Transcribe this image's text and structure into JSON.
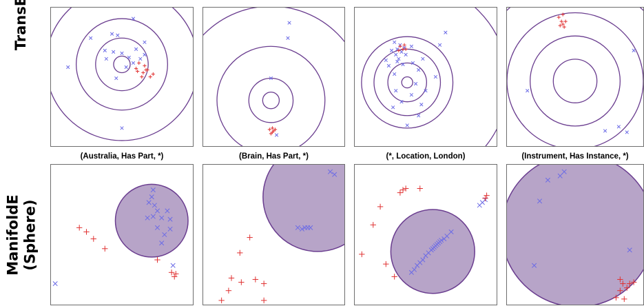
{
  "row_labels": {
    "transe": "TransE",
    "manifolde_line1": "ManifoldE",
    "manifolde_line2": "(Sphere)"
  },
  "captions": [
    "(Australia, Has Part, *)",
    "(Brain, Has Part, *)",
    "(*, Location, London)",
    "(Instrument, Has Instance, *)"
  ],
  "colors": {
    "manifold": "#6a3d8f",
    "fill": "#b7a4c8",
    "neg": "#6b6be6",
    "pos": "#e03030",
    "pos_dark": "#d01818"
  },
  "chart_data": [
    {
      "type": "scatter",
      "model": "TransE",
      "relation": "(Australia, Has Part, *)",
      "xlim": [
        0,
        1
      ],
      "ylim": [
        0,
        1
      ],
      "center": [
        0.5,
        0.59
      ],
      "radii": [
        0.06,
        0.19,
        0.33,
        0.55
      ],
      "series": [
        {
          "name": "",
          "marker": "x",
          "color": "neg",
          "points": [
            [
              0.43,
              0.81
            ],
            [
              0.28,
              0.78
            ],
            [
              0.12,
              0.57
            ],
            [
              0.38,
              0.69
            ],
            [
              0.5,
              0.67
            ],
            [
              0.55,
              0.64
            ],
            [
              0.58,
              0.6
            ],
            [
              0.6,
              0.7
            ],
            [
              0.63,
              0.63
            ],
            [
              0.53,
              0.57
            ],
            [
              0.39,
              0.63
            ],
            [
              0.44,
              0.68
            ],
            [
              0.66,
              0.66
            ],
            [
              0.5,
              0.13
            ],
            [
              0.46,
              0.49
            ],
            [
              0.47,
              0.8
            ],
            [
              0.66,
              0.75
            ],
            [
              0.58,
              0.92
            ]
          ]
        },
        {
          "name": "",
          "marker": "+",
          "color": "pos",
          "points": [
            [
              0.6,
              0.56
            ],
            [
              0.65,
              0.53
            ],
            [
              0.68,
              0.55
            ],
            [
              0.62,
              0.6
            ],
            [
              0.66,
              0.58
            ],
            [
              0.72,
              0.52
            ],
            [
              0.7,
              0.5
            ],
            [
              0.64,
              0.5
            ],
            [
              0.61,
              0.54
            ],
            [
              0.67,
              0.55
            ]
          ]
        }
      ]
    },
    {
      "type": "scatter",
      "model": "TransE",
      "relation": "(Brain, Has Part, *)",
      "xlim": [
        0,
        1
      ],
      "ylim": [
        0,
        1
      ],
      "center": [
        0.48,
        0.33
      ],
      "radii": [
        0.06,
        0.16,
        0.39,
        0.68
      ],
      "series": [
        {
          "name": "",
          "marker": "x",
          "color": "neg",
          "points": [
            [
              0.48,
              0.49
            ],
            [
              0.6,
              0.78
            ],
            [
              0.61,
              0.89
            ],
            [
              0.52,
              0.08
            ]
          ]
        },
        {
          "name": "",
          "marker": "+",
          "color": "pos",
          "points": [
            [
              0.49,
              0.13
            ],
            [
              0.5,
              0.11
            ],
            [
              0.47,
              0.12
            ],
            [
              0.49,
              0.1
            ],
            [
              0.51,
              0.12
            ],
            [
              0.48,
              0.09
            ]
          ]
        }
      ]
    },
    {
      "type": "scatter",
      "model": "TransE",
      "relation": "(*, Location, London)",
      "xlim": [
        0,
        1
      ],
      "ylim": [
        0,
        1
      ],
      "center": [
        0.37,
        0.46
      ],
      "radii": [
        0.04,
        0.14,
        0.24,
        0.33,
        0.73
      ],
      "series": [
        {
          "name": "",
          "marker": "x",
          "color": "neg",
          "points": [
            [
              0.3,
              0.7
            ],
            [
              0.28,
              0.75
            ],
            [
              0.32,
              0.73
            ],
            [
              0.33,
              0.68
            ],
            [
              0.35,
              0.71
            ],
            [
              0.29,
              0.66
            ],
            [
              0.36,
              0.66
            ],
            [
              0.31,
              0.63
            ],
            [
              0.26,
              0.69
            ],
            [
              0.3,
              0.61
            ],
            [
              0.34,
              0.59
            ],
            [
              0.4,
              0.72
            ],
            [
              0.28,
              0.52
            ],
            [
              0.24,
              0.58
            ],
            [
              0.41,
              0.6
            ],
            [
              0.45,
              0.55
            ],
            [
              0.43,
              0.45
            ],
            [
              0.47,
              0.3
            ],
            [
              0.45,
              0.22
            ],
            [
              0.33,
              0.32
            ],
            [
              0.29,
              0.4
            ],
            [
              0.4,
              0.37
            ],
            [
              0.27,
              0.28
            ],
            [
              0.37,
              0.15
            ],
            [
              0.57,
              0.5
            ],
            [
              0.48,
              0.63
            ],
            [
              0.6,
              0.73
            ],
            [
              0.64,
              0.82
            ],
            [
              0.22,
              0.62
            ],
            [
              0.5,
              0.4
            ]
          ]
        },
        {
          "name": "",
          "marker": "+",
          "color": "pos",
          "points": [
            [
              0.32,
              0.72
            ],
            [
              0.34,
              0.7
            ],
            [
              0.36,
              0.7
            ],
            [
              0.31,
              0.69
            ],
            [
              0.35,
              0.73
            ]
          ]
        }
      ]
    },
    {
      "type": "scatter",
      "model": "TransE",
      "relation": "(Instrument, Has Instance, *)",
      "xlim": [
        0,
        1
      ],
      "ylim": [
        0,
        1
      ],
      "center": [
        0.5,
        0.47
      ],
      "radii": [
        0.16,
        0.33,
        0.5,
        0.72
      ],
      "series": [
        {
          "name": "",
          "marker": "x",
          "color": "neg",
          "points": [
            [
              0.15,
              0.4
            ],
            [
              0.72,
              0.11
            ],
            [
              0.82,
              0.14
            ],
            [
              0.88,
              0.1
            ],
            [
              0.93,
              0.69
            ]
          ]
        },
        {
          "name": "",
          "marker": "+",
          "color": "pos",
          "points": [
            [
              0.38,
              0.93
            ],
            [
              0.4,
              0.9
            ],
            [
              0.41,
              0.88
            ],
            [
              0.39,
              0.87
            ],
            [
              0.43,
              0.9
            ],
            [
              0.41,
              0.95
            ],
            [
              0.42,
              0.86
            ]
          ]
        }
      ]
    },
    {
      "type": "scatter",
      "model": "ManifoldE (Sphere)",
      "relation": "(Australia, Has Part, *)",
      "xlim": [
        0,
        1
      ],
      "ylim": [
        0,
        1
      ],
      "sphere_center": [
        0.71,
        0.6
      ],
      "sphere_radius": 0.26,
      "series": [
        {
          "name": "",
          "marker": "x",
          "color": "neg",
          "points": [
            [
              0.71,
              0.77
            ],
            [
              0.69,
              0.73
            ],
            [
              0.73,
              0.71
            ],
            [
              0.75,
              0.67
            ],
            [
              0.82,
              0.67
            ],
            [
              0.68,
              0.62
            ],
            [
              0.72,
              0.63
            ],
            [
              0.78,
              0.62
            ],
            [
              0.84,
              0.61
            ],
            [
              0.75,
              0.55
            ],
            [
              0.8,
              0.5
            ],
            [
              0.84,
              0.54
            ],
            [
              0.78,
              0.44
            ],
            [
              0.86,
              0.28
            ],
            [
              0.03,
              0.15
            ],
            [
              0.72,
              0.82
            ]
          ]
        },
        {
          "name": "",
          "marker": "+",
          "color": "pos",
          "points": [
            [
              0.2,
              0.55
            ],
            [
              0.25,
              0.52
            ],
            [
              0.3,
              0.47
            ],
            [
              0.38,
              0.4
            ],
            [
              0.75,
              0.32
            ],
            [
              0.85,
              0.23
            ],
            [
              0.87,
              0.2
            ],
            [
              0.88,
              0.22
            ]
          ]
        }
      ]
    },
    {
      "type": "scatter",
      "model": "ManifoldE (Sphere)",
      "relation": "(Brain, Has Part, *)",
      "xlim": [
        0,
        1
      ],
      "ylim": [
        0,
        1
      ],
      "sphere_center": [
        0.81,
        0.77
      ],
      "sphere_radius": 0.39,
      "series": [
        {
          "name": "",
          "marker": "x",
          "color": "neg",
          "points": [
            [
              0.67,
              0.55
            ],
            [
              0.7,
              0.54
            ],
            [
              0.72,
              0.55
            ],
            [
              0.74,
              0.55
            ],
            [
              0.76,
              0.55
            ],
            [
              0.9,
              0.95
            ],
            [
              0.93,
              0.93
            ]
          ]
        },
        {
          "name": "",
          "marker": "+",
          "color": "pos",
          "points": [
            [
              0.33,
              0.48
            ],
            [
              0.26,
              0.37
            ],
            [
              0.2,
              0.19
            ],
            [
              0.27,
              0.16
            ],
            [
              0.37,
              0.18
            ],
            [
              0.43,
              0.15
            ],
            [
              0.18,
              0.1
            ],
            [
              0.43,
              0.03
            ],
            [
              0.13,
              0.03
            ]
          ]
        }
      ]
    },
    {
      "type": "scatter",
      "model": "ManifoldE (Sphere)",
      "relation": "(*, Location, London)",
      "xlim": [
        0,
        1
      ],
      "ylim": [
        0,
        1
      ],
      "sphere_center": [
        0.55,
        0.38
      ],
      "sphere_radius": 0.3,
      "series": [
        {
          "name": "",
          "marker": "x",
          "color": "neg",
          "points": [
            [
              0.4,
              0.23
            ],
            [
              0.42,
              0.25
            ],
            [
              0.44,
              0.28
            ],
            [
              0.46,
              0.3
            ],
            [
              0.48,
              0.32
            ],
            [
              0.5,
              0.35
            ],
            [
              0.52,
              0.37
            ],
            [
              0.54,
              0.39
            ],
            [
              0.55,
              0.4
            ],
            [
              0.56,
              0.41
            ],
            [
              0.57,
              0.42
            ],
            [
              0.58,
              0.43
            ],
            [
              0.59,
              0.44
            ],
            [
              0.6,
              0.45
            ],
            [
              0.61,
              0.46
            ],
            [
              0.63,
              0.47
            ],
            [
              0.65,
              0.49
            ],
            [
              0.68,
              0.52
            ],
            [
              0.88,
              0.71
            ],
            [
              0.9,
              0.73
            ],
            [
              0.92,
              0.75
            ]
          ]
        },
        {
          "name": "",
          "marker": "+",
          "color": "pos",
          "points": [
            [
              0.32,
              0.8
            ],
            [
              0.34,
              0.82
            ],
            [
              0.36,
              0.83
            ],
            [
              0.18,
              0.7
            ],
            [
              0.13,
              0.57
            ],
            [
              0.05,
              0.36
            ],
            [
              0.22,
              0.29
            ],
            [
              0.28,
              0.2
            ],
            [
              0.92,
              0.76
            ],
            [
              0.93,
              0.78
            ],
            [
              0.46,
              0.83
            ]
          ]
        }
      ]
    },
    {
      "type": "scatter",
      "model": "ManifoldE (Sphere)",
      "relation": "(Instrument, Has Instance, *)",
      "xlim": [
        0,
        1
      ],
      "ylim": [
        0,
        1
      ],
      "sphere_center": [
        0.52,
        0.53
      ],
      "sphere_radius": 0.56,
      "series": [
        {
          "name": "",
          "marker": "x",
          "color": "neg",
          "points": [
            [
              0.3,
              0.89
            ],
            [
              0.39,
              0.92
            ],
            [
              0.42,
              0.95
            ],
            [
              0.24,
              0.74
            ],
            [
              0.2,
              0.28
            ],
            [
              0.9,
              0.39
            ]
          ]
        },
        {
          "name": "",
          "marker": "+",
          "color": "pos",
          "points": [
            [
              0.83,
              0.18
            ],
            [
              0.85,
              0.15
            ],
            [
              0.9,
              0.15
            ],
            [
              0.93,
              0.16
            ],
            [
              0.88,
              0.12
            ],
            [
              0.83,
              0.1
            ],
            [
              0.8,
              0.05
            ],
            [
              0.86,
              0.04
            ]
          ]
        }
      ]
    }
  ]
}
